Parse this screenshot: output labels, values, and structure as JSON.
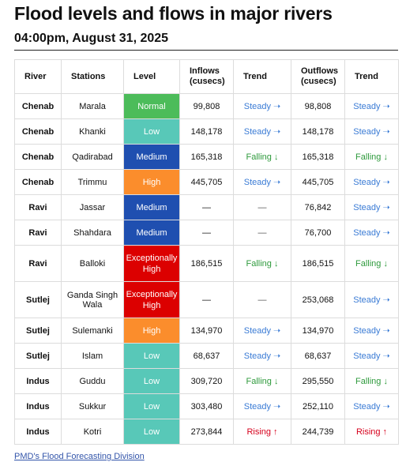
{
  "title": "Flood levels and flows in major rivers",
  "subtitle": "04:00pm, August 31, 2025",
  "headers": [
    "River",
    "Stations",
    "Level",
    "Inflows\n(cusecs)",
    "Trend",
    "Outflows\n(cusecs)",
    "Trend"
  ],
  "rows": [
    {
      "river": "Chenab",
      "station": "Marala",
      "level": "Normal",
      "lvl": "normal",
      "inflow": "99,808",
      "in_trend": "Steady ➝",
      "in_t": "steady",
      "outflow": "98,808",
      "out_trend": "Steady ➝",
      "out_t": "steady"
    },
    {
      "river": "Chenab",
      "station": "Khanki",
      "level": "Low",
      "lvl": "low",
      "inflow": "148,178",
      "in_trend": "Steady ➝",
      "in_t": "steady",
      "outflow": "148,178",
      "out_trend": "Steady ➝",
      "out_t": "steady"
    },
    {
      "river": "Chenab",
      "station": "Qadirabad",
      "level": "Medium",
      "lvl": "medium",
      "inflow": "165,318",
      "in_trend": "Falling ↓",
      "in_t": "falling",
      "outflow": "165,318",
      "out_trend": "Falling ↓",
      "out_t": "falling"
    },
    {
      "river": "Chenab",
      "station": "Trimmu",
      "level": "High",
      "lvl": "high",
      "inflow": "445,705",
      "in_trend": "Steady ➝",
      "in_t": "steady",
      "outflow": "445,705",
      "out_trend": "Steady ➝",
      "out_t": "steady"
    },
    {
      "river": "Ravi",
      "station": "Jassar",
      "level": "Medium",
      "lvl": "medium",
      "inflow": "—",
      "in_trend": "—",
      "in_t": "dash",
      "outflow": "76,842",
      "out_trend": "Steady ➝",
      "out_t": "steady"
    },
    {
      "river": "Ravi",
      "station": "Shahdara",
      "level": "Medium",
      "lvl": "medium",
      "inflow": "—",
      "in_trend": "—",
      "in_t": "dash",
      "outflow": "76,700",
      "out_trend": "Steady ➝",
      "out_t": "steady"
    },
    {
      "river": "Ravi",
      "station": "Balloki",
      "level": "Exceptionally High",
      "lvl": "exhigh",
      "inflow": "186,515",
      "in_trend": "Falling ↓",
      "in_t": "falling",
      "outflow": "186,515",
      "out_trend": "Falling ↓",
      "out_t": "falling"
    },
    {
      "river": "Sutlej",
      "station": "Ganda Singh Wala",
      "level": "Exceptionally High",
      "lvl": "exhigh",
      "inflow": "—",
      "in_trend": "—",
      "in_t": "dash",
      "outflow": "253,068",
      "out_trend": "Steady ➝",
      "out_t": "steady"
    },
    {
      "river": "Sutlej",
      "station": "Sulemanki",
      "level": "High",
      "lvl": "high",
      "inflow": "134,970",
      "in_trend": "Steady ➝",
      "in_t": "steady",
      "outflow": "134,970",
      "out_trend": "Steady ➝",
      "out_t": "steady"
    },
    {
      "river": "Sutlej",
      "station": "Islam",
      "level": "Low",
      "lvl": "low",
      "inflow": "68,637",
      "in_trend": "Steady ➝",
      "in_t": "steady",
      "outflow": "68,637",
      "out_trend": "Steady ➝",
      "out_t": "steady"
    },
    {
      "river": "Indus",
      "station": "Guddu",
      "level": "Low",
      "lvl": "low",
      "inflow": "309,720",
      "in_trend": "Falling ↓",
      "in_t": "falling",
      "outflow": "295,550",
      "out_trend": "Falling ↓",
      "out_t": "falling"
    },
    {
      "river": "Indus",
      "station": "Sukkur",
      "level": "Low",
      "lvl": "low",
      "inflow": "303,480",
      "in_trend": "Steady ➝",
      "in_t": "steady",
      "outflow": "252,110",
      "out_trend": "Steady ➝",
      "out_t": "steady"
    },
    {
      "river": "Indus",
      "station": "Kotri",
      "level": "Low",
      "lvl": "low",
      "inflow": "273,844",
      "in_trend": "Rising ↑",
      "in_t": "rising",
      "outflow": "244,739",
      "out_trend": "Rising ↑",
      "out_t": "rising"
    }
  ],
  "footer_link": "PMD's Flood Forecasting Division",
  "colors": {
    "normal": "#4cbc5a",
    "low": "#58c8b8",
    "medium": "#1f4fb0",
    "high": "#fb8d2c",
    "exhigh": "#dc0000",
    "steady": "#3a7bd5",
    "falling": "#2e9a3c",
    "rising": "#d6001c"
  }
}
